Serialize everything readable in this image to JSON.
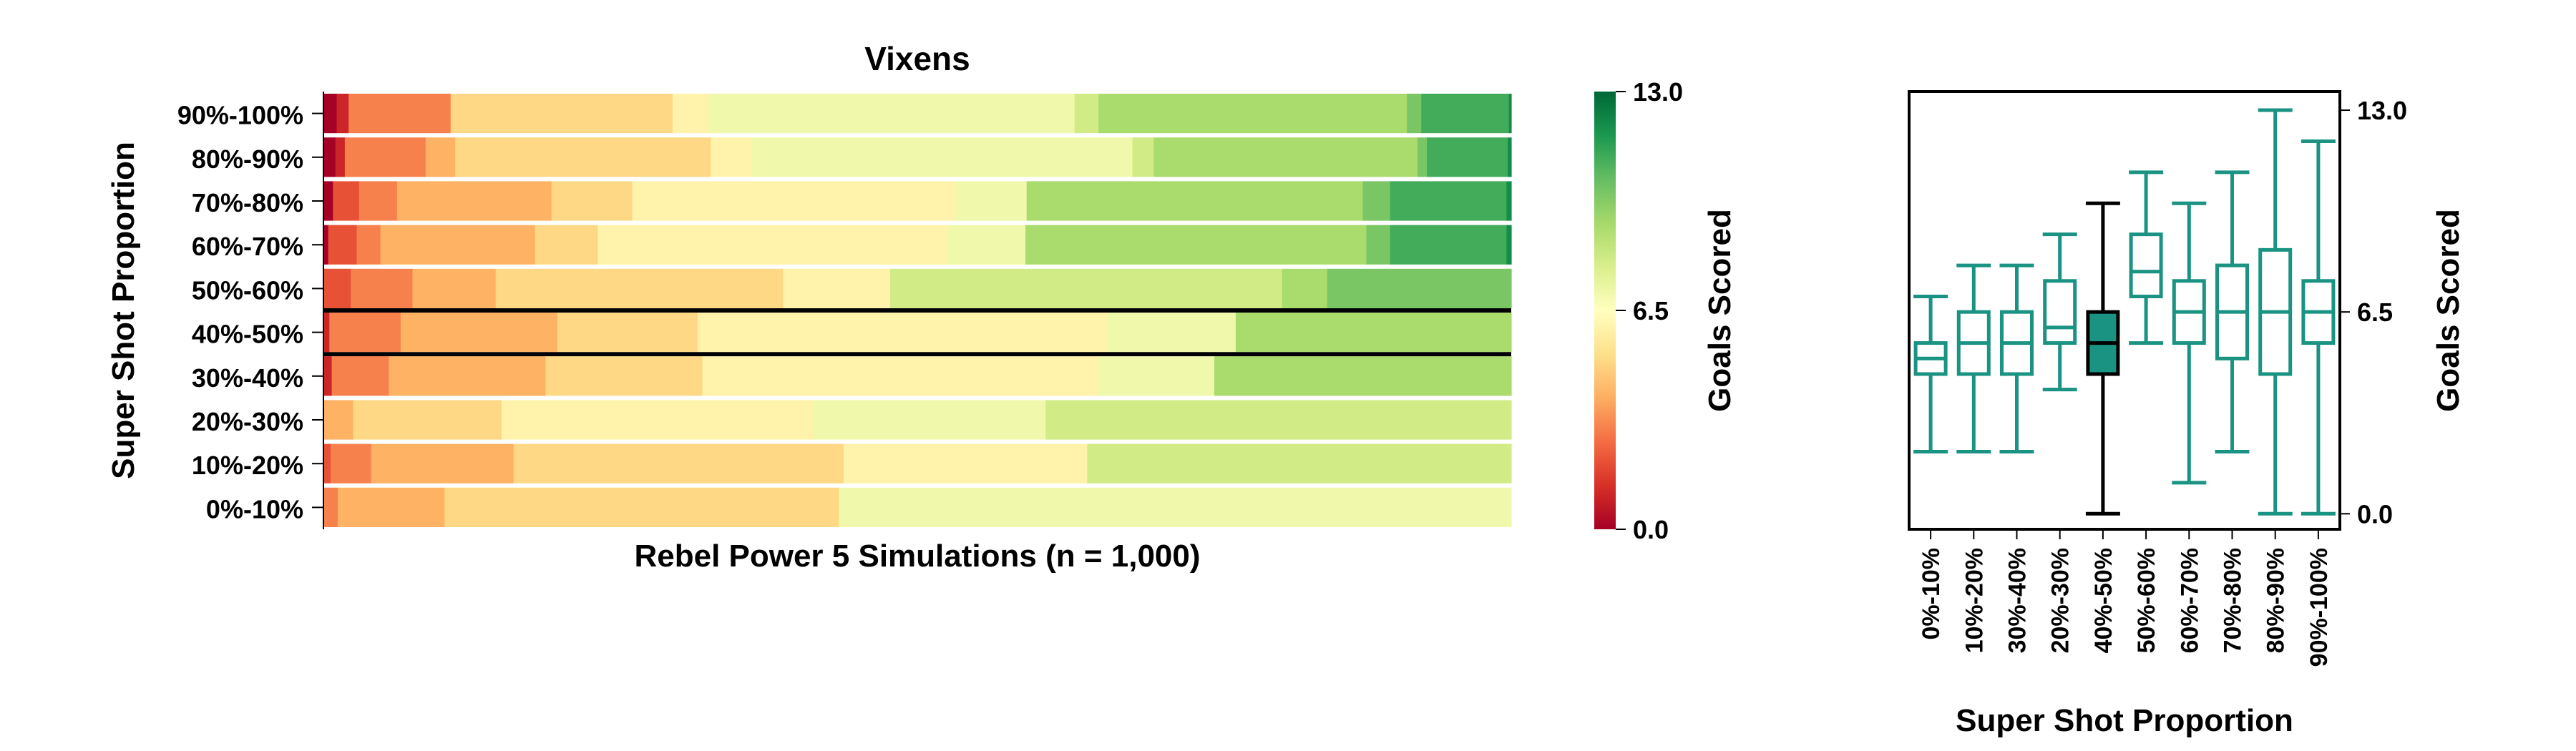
{
  "chart_data": [
    {
      "type": "heatmap",
      "title": "Vixens",
      "xlabel": "Rebel Power 5 Simulations (n = 1,000)",
      "ylabel": "Super Shot Proportion",
      "y_categories": [
        "90%-100%",
        "80%-90%",
        "70%-80%",
        "60%-70%",
        "50%-60%",
        "40%-50%",
        "30%-40%",
        "20%-30%",
        "10%-20%",
        "0%-10%"
      ],
      "highlighted_category": "40%-50%",
      "cmap": "RdYlGn",
      "colorbar": {
        "label": "Goals Scored",
        "min": 0.0,
        "max": 13.0,
        "ticks": [
          "0.0",
          "6.5",
          "13.0"
        ]
      },
      "rows": [
        {
          "category": "90%-100%",
          "segments": [
            [
              0,
              11
            ],
            [
              1,
              10
            ],
            [
              3,
              85
            ],
            [
              5,
              185
            ],
            [
              6,
              30
            ],
            [
              7,
              305
            ],
            [
              8,
              20
            ],
            [
              9,
              257
            ],
            [
              10,
              12
            ],
            [
              11,
              73
            ],
            [
              12,
              2
            ]
          ]
        },
        {
          "category": "80%-90%",
          "segments": [
            [
              0,
              10
            ],
            [
              1,
              8
            ],
            [
              3,
              68
            ],
            [
              4,
              25
            ],
            [
              5,
              215
            ],
            [
              6,
              35
            ],
            [
              7,
              320
            ],
            [
              8,
              18
            ],
            [
              9,
              222
            ],
            [
              10,
              8
            ],
            [
              11,
              68
            ],
            [
              12,
              3
            ]
          ]
        },
        {
          "category": "70%-80%",
          "segments": [
            [
              0,
              8
            ],
            [
              2,
              22
            ],
            [
              3,
              32
            ],
            [
              4,
              130
            ],
            [
              5,
              68
            ],
            [
              6,
              272
            ],
            [
              7,
              60
            ],
            [
              9,
              283
            ],
            [
              10,
              23
            ],
            [
              11,
              98
            ],
            [
              12,
              4
            ]
          ]
        },
        {
          "category": "60%-70%",
          "segments": [
            [
              0,
              4
            ],
            [
              2,
              24
            ],
            [
              3,
              20
            ],
            [
              4,
              130
            ],
            [
              5,
              53
            ],
            [
              6,
              295
            ],
            [
              7,
              65
            ],
            [
              9,
              287
            ],
            [
              10,
              20
            ],
            [
              11,
              98
            ],
            [
              12,
              4
            ]
          ]
        },
        {
          "category": "50%-60%",
          "segments": [
            [
              2,
              23
            ],
            [
              3,
              52
            ],
            [
              4,
              70
            ],
            [
              5,
              242
            ],
            [
              6,
              90
            ],
            [
              8,
              330
            ],
            [
              9,
              38
            ],
            [
              10,
              155
            ]
          ]
        },
        {
          "category": "40%-50%",
          "segments": [
            [
              1,
              5
            ],
            [
              3,
              60
            ],
            [
              4,
              132
            ],
            [
              5,
              118
            ],
            [
              6,
              345
            ],
            [
              7,
              108
            ],
            [
              9,
              232
            ]
          ]
        },
        {
          "category": "30%-40%",
          "segments": [
            [
              1,
              7
            ],
            [
              3,
              48
            ],
            [
              4,
              132
            ],
            [
              5,
              132
            ],
            [
              6,
              333
            ],
            [
              7,
              98
            ],
            [
              9,
              250
            ]
          ]
        },
        {
          "category": "20%-30%",
          "segments": [
            [
              4,
              25
            ],
            [
              5,
              125
            ],
            [
              6,
              263
            ],
            [
              7,
              195
            ],
            [
              8,
              392
            ]
          ]
        },
        {
          "category": "10%-20%",
          "segments": [
            [
              2,
              6
            ],
            [
              3,
              34
            ],
            [
              4,
              120
            ],
            [
              5,
              278
            ],
            [
              6,
              205
            ],
            [
              8,
              357
            ]
          ]
        },
        {
          "category": "0%-10%",
          "segments": [
            [
              3,
              12
            ],
            [
              4,
              90
            ],
            [
              5,
              332
            ],
            [
              7,
              566
            ]
          ]
        }
      ]
    },
    {
      "type": "box",
      "xlabel": "Super Shot Proportion",
      "ylabel": "Goals Scored",
      "y_ticks": [
        "0.0",
        "6.5",
        "13.0"
      ],
      "ylim": [
        -0.5,
        13.6
      ],
      "categories": [
        "0%-10%",
        "10%-20%",
        "30%-40%",
        "20%-30%",
        "40%-50%",
        "50%-60%",
        "60%-70%",
        "70%-80%",
        "80%-90%",
        "90%-100%"
      ],
      "highlighted_category": "40%-50%",
      "colors": {
        "box": "#1a9382",
        "highlight_fill": "#1a9382",
        "highlight_edge": "#000000"
      },
      "boxes": [
        {
          "category": "0%-10%",
          "whislo": 2,
          "q1": 4.5,
          "med": 5,
          "q3": 5.5,
          "whishi": 7
        },
        {
          "category": "10%-20%",
          "whislo": 2,
          "q1": 4.5,
          "med": 5.5,
          "q3": 6.5,
          "whishi": 8
        },
        {
          "category": "30%-40%",
          "whislo": 2,
          "q1": 4.5,
          "med": 5.5,
          "q3": 6.5,
          "whishi": 8
        },
        {
          "category": "20%-30%",
          "whislo": 4,
          "q1": 5.5,
          "med": 6,
          "q3": 7.5,
          "whishi": 9
        },
        {
          "category": "40%-50%",
          "whislo": 0,
          "q1": 4.5,
          "med": 5.5,
          "q3": 6.5,
          "whishi": 10
        },
        {
          "category": "50%-60%",
          "whislo": 5.5,
          "q1": 7,
          "med": 7.8,
          "q3": 9,
          "whishi": 11
        },
        {
          "category": "60%-70%",
          "whislo": 1,
          "q1": 5.5,
          "med": 6.5,
          "q3": 7.5,
          "whishi": 10
        },
        {
          "category": "70%-80%",
          "whislo": 2,
          "q1": 5,
          "med": 6.5,
          "q3": 8,
          "whishi": 11
        },
        {
          "category": "80%-90%",
          "whislo": 0,
          "q1": 4.5,
          "med": 6.5,
          "q3": 8.5,
          "whishi": 13
        },
        {
          "category": "90%-100%",
          "whislo": 0,
          "q1": 5.5,
          "med": 6.5,
          "q3": 7.5,
          "whishi": 12
        }
      ]
    }
  ]
}
